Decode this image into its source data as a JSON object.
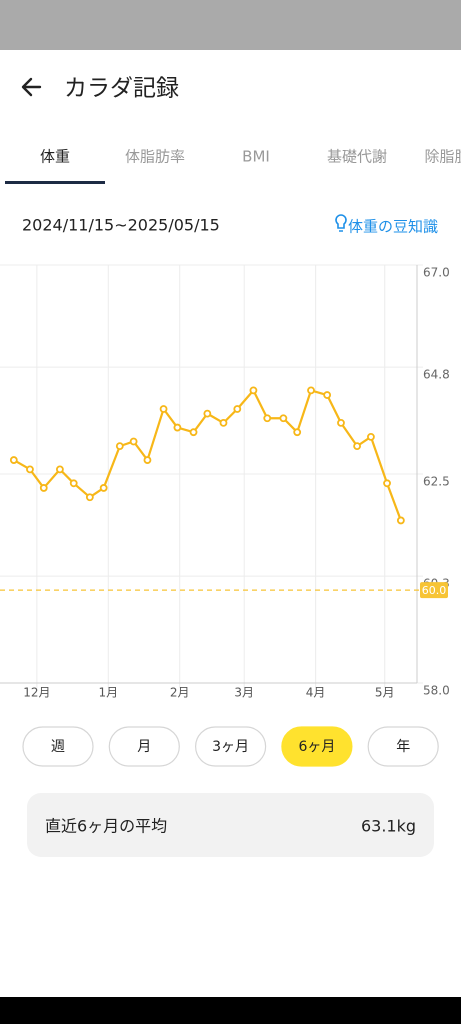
{
  "header": {
    "title": "カラダ記録"
  },
  "tabs": [
    "体重",
    "体脂肪率",
    "BMI",
    "基礎代謝",
    "除脂肪"
  ],
  "active_tab": 0,
  "date_range": "2024/11/15~2025/05/15",
  "tip_link": "体重の豆知識",
  "chart_data": {
    "type": "line",
    "x": [
      6,
      13,
      19,
      26,
      32,
      39,
      45,
      52,
      58,
      64,
      71,
      77,
      84,
      90,
      97,
      103,
      110,
      116,
      123,
      129,
      135,
      142,
      148,
      155,
      161,
      168,
      174
    ],
    "values": [
      62.8,
      62.6,
      62.2,
      62.6,
      62.3,
      62.0,
      62.2,
      63.1,
      63.2,
      62.8,
      63.9,
      63.5,
      63.4,
      63.8,
      63.6,
      63.9,
      64.3,
      63.7,
      63.7,
      63.4,
      64.3,
      64.2,
      63.6,
      63.1,
      63.3,
      62.3,
      61.5
    ],
    "color": "#f7b718",
    "xlim": [
      0,
      181
    ],
    "xticks": [
      {
        "value": 16,
        "label": "12月"
      },
      {
        "value": 47,
        "label": "1月"
      },
      {
        "value": 78,
        "label": "2月"
      },
      {
        "value": 106,
        "label": "3月"
      },
      {
        "value": 137,
        "label": "4月"
      },
      {
        "value": 167,
        "label": "5月"
      }
    ],
    "ylim": [
      58.0,
      67.0
    ],
    "yticks": [
      {
        "value": 58,
        "label": "58.0"
      },
      60.3,
      62.5,
      64.8,
      {
        "value": 67,
        "label": "67.0"
      }
    ],
    "grid": true,
    "goal": {
      "value": 60,
      "label": "60.0"
    }
  },
  "periods": [
    "週",
    "月",
    "3ヶ月",
    "6ヶ月",
    "年"
  ],
  "selected_period": 3,
  "average": {
    "label": "直近6ヶ月の平均",
    "value": "63.1kg"
  }
}
